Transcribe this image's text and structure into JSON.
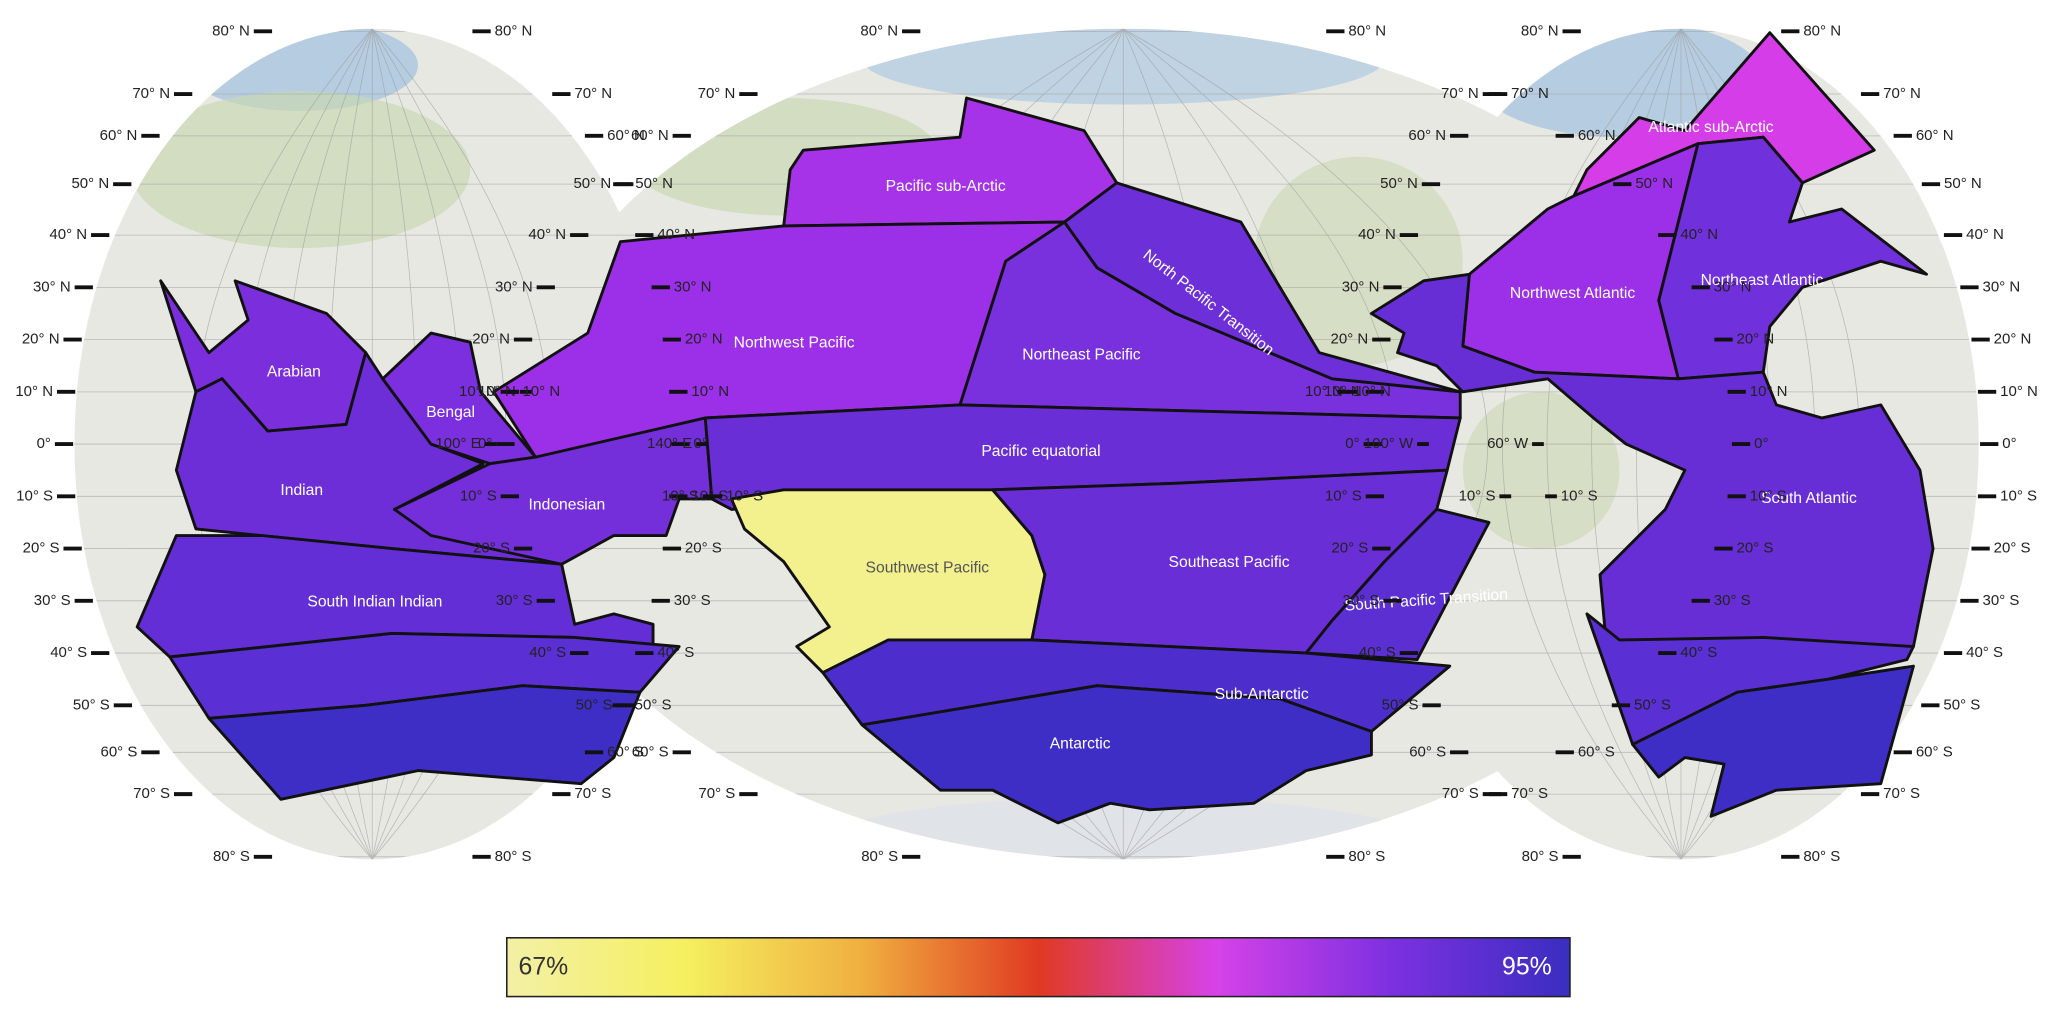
{
  "regions": [
    {
      "name": "Arabian",
      "color": "#7b2fdc"
    },
    {
      "name": "Bengal",
      "color": "#7c2fde"
    },
    {
      "name": "Indian",
      "color": "#6d2ed8"
    },
    {
      "name": "Indonesian",
      "color": "#742fda"
    },
    {
      "name": "South Indian Indian",
      "color": "#632ed5"
    },
    {
      "name": "Pacific sub-Arctic",
      "color": "#a633e8"
    },
    {
      "name": "Northwest Pacific",
      "color": "#9b30e8"
    },
    {
      "name": "Northeast Pacific",
      "color": "#7930dd"
    },
    {
      "name": "North Pacific Transition",
      "color": "#6c2fd8"
    },
    {
      "name": "Pacific equatorial",
      "color": "#6a2ed6"
    },
    {
      "name": "Southwest Pacific",
      "color": "#f3f08e"
    },
    {
      "name": "Southeast Pacific",
      "color": "#6a2ed6"
    },
    {
      "name": "South Pacific Transition",
      "color": "#5b2fd1"
    },
    {
      "name": "Sub-Antarctic",
      "color": "#4d2ecd"
    },
    {
      "name": "Antarctic",
      "color": "#3f2ec6"
    },
    {
      "name": "Atlantic sub-Arctic",
      "color": "#d53de9"
    },
    {
      "name": "Northwest Atlantic",
      "color": "#9b30e8"
    },
    {
      "name": "Northeast Atlantic",
      "color": "#7030db"
    },
    {
      "name": "South Atlantic",
      "color": "#672ed5"
    }
  ],
  "lat_labels": [
    "80° N",
    "70° N",
    "60° N",
    "50° N",
    "40° N",
    "30° N",
    "20° N",
    "10° N",
    "0°",
    "10° S",
    "20° S",
    "30° S",
    "40° S",
    "50° S",
    "60° S",
    "70° S",
    "80° S"
  ],
  "lon_labels": [
    "100° E",
    "140° E",
    "100° W",
    "60° W"
  ],
  "colorbar": {
    "colors": [
      "#f3f0a6",
      "#f5f060",
      "#f0b040",
      "#e03a22",
      "#d642e8",
      "#7c30e0",
      "#3a2ec0"
    ],
    "ticks": [
      {
        "value": 67,
        "label": "67%"
      },
      {
        "value": 95,
        "label": "95%"
      }
    ]
  }
}
